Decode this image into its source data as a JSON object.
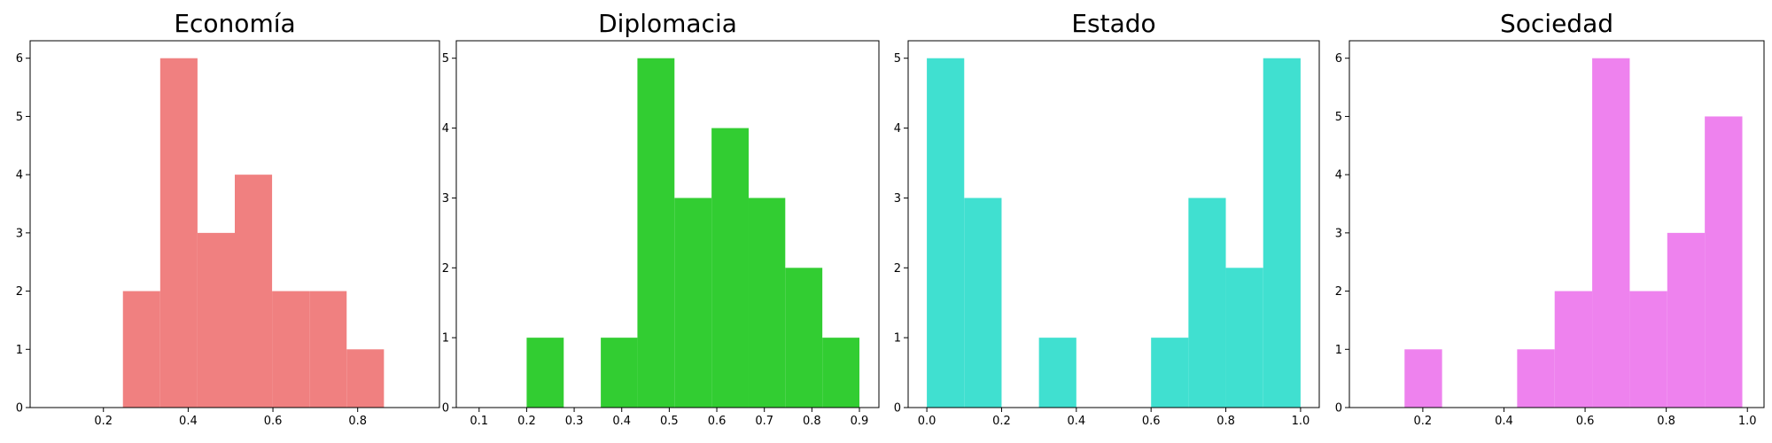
{
  "chart_data": [
    {
      "type": "histogram",
      "title": "Economía",
      "color": "#f08080",
      "bins": [
        0.07,
        0.158,
        0.246,
        0.334,
        0.422,
        0.51,
        0.598,
        0.686,
        0.774,
        0.862,
        0.95
      ],
      "counts": [
        0,
        0,
        2,
        6,
        3,
        4,
        2,
        2,
        1,
        0
      ],
      "xlim": [
        0.027,
        0.993
      ],
      "ylim": [
        0,
        6.3
      ],
      "xticks": [
        0.2,
        0.4,
        0.6,
        0.8
      ],
      "yticks": [
        0,
        1,
        2,
        3,
        4,
        5,
        6
      ]
    },
    {
      "type": "histogram",
      "title": "Diplomacia",
      "color": "#32cd32",
      "bins": [
        0.2,
        0.278,
        0.356,
        0.433,
        0.511,
        0.589,
        0.667,
        0.744,
        0.822,
        0.9
      ],
      "counts": [
        1,
        0,
        1,
        5,
        3,
        4,
        3,
        2,
        1
      ],
      "xlim": [
        0.052,
        0.941
      ],
      "ylim": [
        0,
        5.25
      ],
      "xticks": [
        0.1,
        0.2,
        0.3,
        0.4,
        0.5,
        0.6,
        0.7,
        0.8,
        0.9
      ],
      "yticks": [
        0,
        1,
        2,
        3,
        4,
        5
      ]
    },
    {
      "type": "histogram",
      "title": "Estado",
      "color": "#40e0d0",
      "bins": [
        0,
        0.1,
        0.2,
        0.3,
        0.4,
        0.5,
        0.6,
        0.7,
        0.8,
        0.9,
        1
      ],
      "counts": [
        5,
        3,
        0,
        1,
        0,
        0,
        1,
        3,
        2,
        5
      ],
      "xlim": [
        -0.05,
        1.05
      ],
      "ylim": [
        0,
        5.25
      ],
      "xticks": [
        {
          "value": 0,
          "label": "0.0"
        },
        0.2,
        0.4,
        0.6,
        0.8,
        {
          "value": 1,
          "label": "1.0"
        }
      ],
      "yticks": [
        0,
        1,
        2,
        3,
        4,
        5
      ]
    },
    {
      "type": "histogram",
      "title": "Sociedad",
      "color": "#ee82ee",
      "bins": [
        0.155,
        0.2475,
        0.34,
        0.4325,
        0.525,
        0.6175,
        0.71,
        0.8025,
        0.895,
        0.9875
      ],
      "counts": [
        1,
        0,
        0,
        1,
        2,
        6,
        2,
        3,
        5
      ],
      "xlim": [
        0.019,
        1.041
      ],
      "ylim": [
        0,
        6.3
      ],
      "xticks": [
        0.2,
        0.4,
        0.6,
        0.8,
        {
          "value": 1,
          "label": "1.0"
        }
      ],
      "yticks": [
        0,
        1,
        2,
        3,
        4,
        5,
        6
      ]
    }
  ]
}
